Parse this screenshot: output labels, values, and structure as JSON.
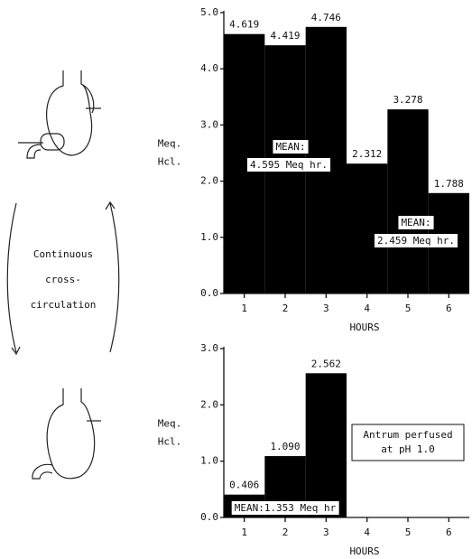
{
  "diagram": {
    "lines": [
      "Continuous",
      "cross-",
      "circulation"
    ]
  },
  "chart_data": [
    {
      "type": "bar",
      "y_label": [
        "Meq.",
        "Hcl."
      ],
      "x_label": "HOURS",
      "categories": [
        "1",
        "2",
        "3",
        "4",
        "5",
        "6"
      ],
      "values": [
        4.619,
        4.419,
        4.746,
        2.312,
        3.278,
        1.788
      ],
      "value_labels": [
        "4.619",
        "4.419",
        "4.746",
        "2.312",
        "3.278",
        "1.788"
      ],
      "color": "#000000",
      "ylim": [
        0,
        5
      ],
      "yticks": [
        {
          "value": 0,
          "label": "0.0"
        },
        {
          "value": 1,
          "label": "1.0"
        },
        {
          "value": 2,
          "label": "2.0"
        },
        {
          "value": 3,
          "label": "3.0"
        },
        {
          "value": 4,
          "label": "4.0"
        },
        {
          "value": 5,
          "label": "5.0"
        }
      ],
      "annotations": [
        {
          "lines": [
            "MEAN:",
            "4.595 Meq hr."
          ]
        },
        {
          "lines": [
            "MEAN:",
            "2.459 Meq hr."
          ]
        }
      ]
    },
    {
      "type": "bar",
      "y_label": [
        "Meq.",
        "Hcl."
      ],
      "x_label": "HOURS",
      "categories": [
        "1",
        "2",
        "3",
        "4",
        "5",
        "6"
      ],
      "values": [
        0.406,
        1.09,
        2.562,
        null,
        null,
        null
      ],
      "value_labels": [
        "0.406",
        "1.090",
        "2.562",
        null,
        null,
        null
      ],
      "color": "#000000",
      "ylim": [
        0,
        3
      ],
      "yticks": [
        {
          "value": 0,
          "label": "0.0"
        },
        {
          "value": 1,
          "label": "1.0"
        },
        {
          "value": 2,
          "label": "2.0"
        },
        {
          "value": 3,
          "label": "3.0"
        }
      ],
      "annotations": [
        {
          "lines": [
            "Antrum perfused",
            "at pH 1.0"
          ]
        },
        {
          "lines": [
            "MEAN:1.353 Meq hr"
          ]
        }
      ]
    }
  ]
}
